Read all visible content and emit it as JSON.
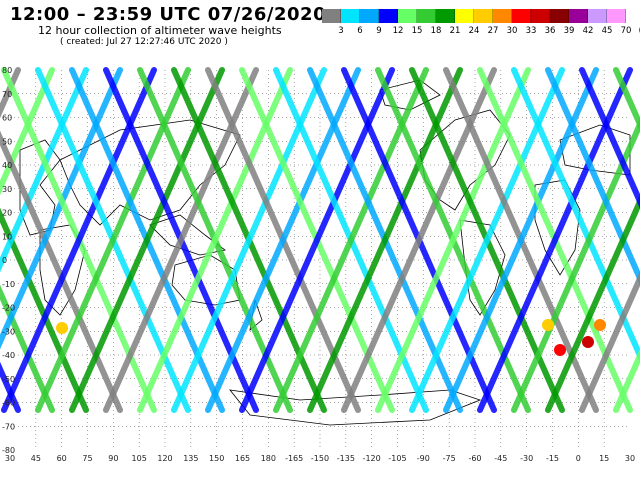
{
  "header": {
    "title": "12:00  –  23:59 UTC 07/26/2020",
    "subtitle": "12 hour collection of altimeter wave heights",
    "created": "( created: Jul 27 12:27:46 UTC 2020 )"
  },
  "legend": {
    "labels": [
      "3",
      "6",
      "9",
      "12",
      "15",
      "18",
      "21",
      "24",
      "27",
      "30",
      "33",
      "36",
      "39",
      "42",
      "45",
      "70",
      "(ft)"
    ],
    "colors": [
      "#808080",
      "#00e5ff",
      "#00a8ff",
      "#0000ff",
      "#66ff66",
      "#33cc33",
      "#009900",
      "#ffff00",
      "#ffcc00",
      "#ff8800",
      "#ff0000",
      "#cc0000",
      "#880000",
      "#990099",
      "#cc99ff",
      "#ff99ff"
    ]
  },
  "map": {
    "lat_labels": [
      "80",
      "70",
      "60",
      "50",
      "40",
      "30",
      "20",
      "10",
      "0",
      "-10",
      "-20",
      "-30",
      "-40",
      "-50",
      "-60",
      "-70",
      "-80"
    ],
    "lon_labels": [
      "30",
      "45",
      "60",
      "75",
      "90",
      "105",
      "120",
      "135",
      "150",
      "165",
      "180",
      "-165",
      "-150",
      "-135",
      "-120",
      "-105",
      "-90",
      "-75",
      "-60",
      "-45",
      "-30",
      "-15",
      "0",
      "15",
      "30"
    ]
  }
}
